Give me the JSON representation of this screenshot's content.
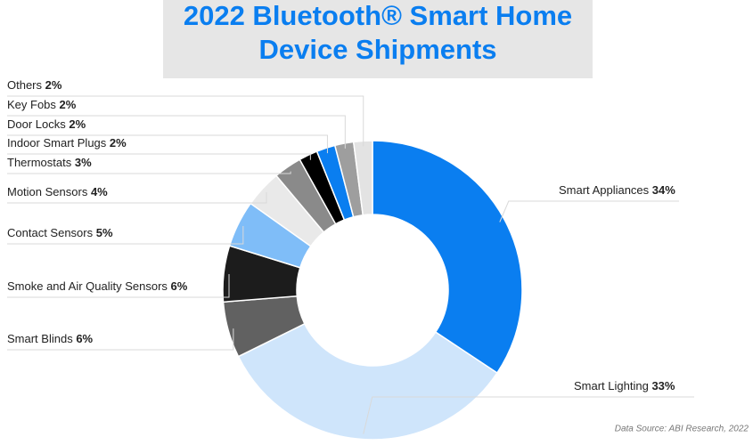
{
  "chart_data": {
    "type": "donut",
    "title": [
      "2022 Bluetooth® Smart Home",
      "Device Shipments"
    ],
    "source": "Data Source: ABI Research, 2022",
    "categories": [
      "Smart Appliances",
      "Smart Lighting",
      "Smart Blinds",
      "Smoke and Air Quality Sensors",
      "Contact Sensors",
      "Motion Sensors",
      "Thermostats",
      "Indoor Smart Plugs",
      "Door Locks",
      "Key Fobs",
      "Others"
    ],
    "values": [
      34,
      33,
      6,
      6,
      5,
      4,
      3,
      2,
      2,
      2,
      2
    ],
    "value_labels": [
      "34%",
      "33%",
      "6%",
      "6%",
      "5%",
      "4%",
      "3%",
      "2%",
      "2%",
      "2%",
      "2%"
    ],
    "colors": [
      "#0a7ef0",
      "#cfe5fb",
      "#616161",
      "#1c1c1c",
      "#7fbdf8",
      "#e9e9e9",
      "#8a8a8a",
      "#000000",
      "#0a7ef0",
      "#9e9e9e",
      "#e3e3e3"
    ]
  }
}
